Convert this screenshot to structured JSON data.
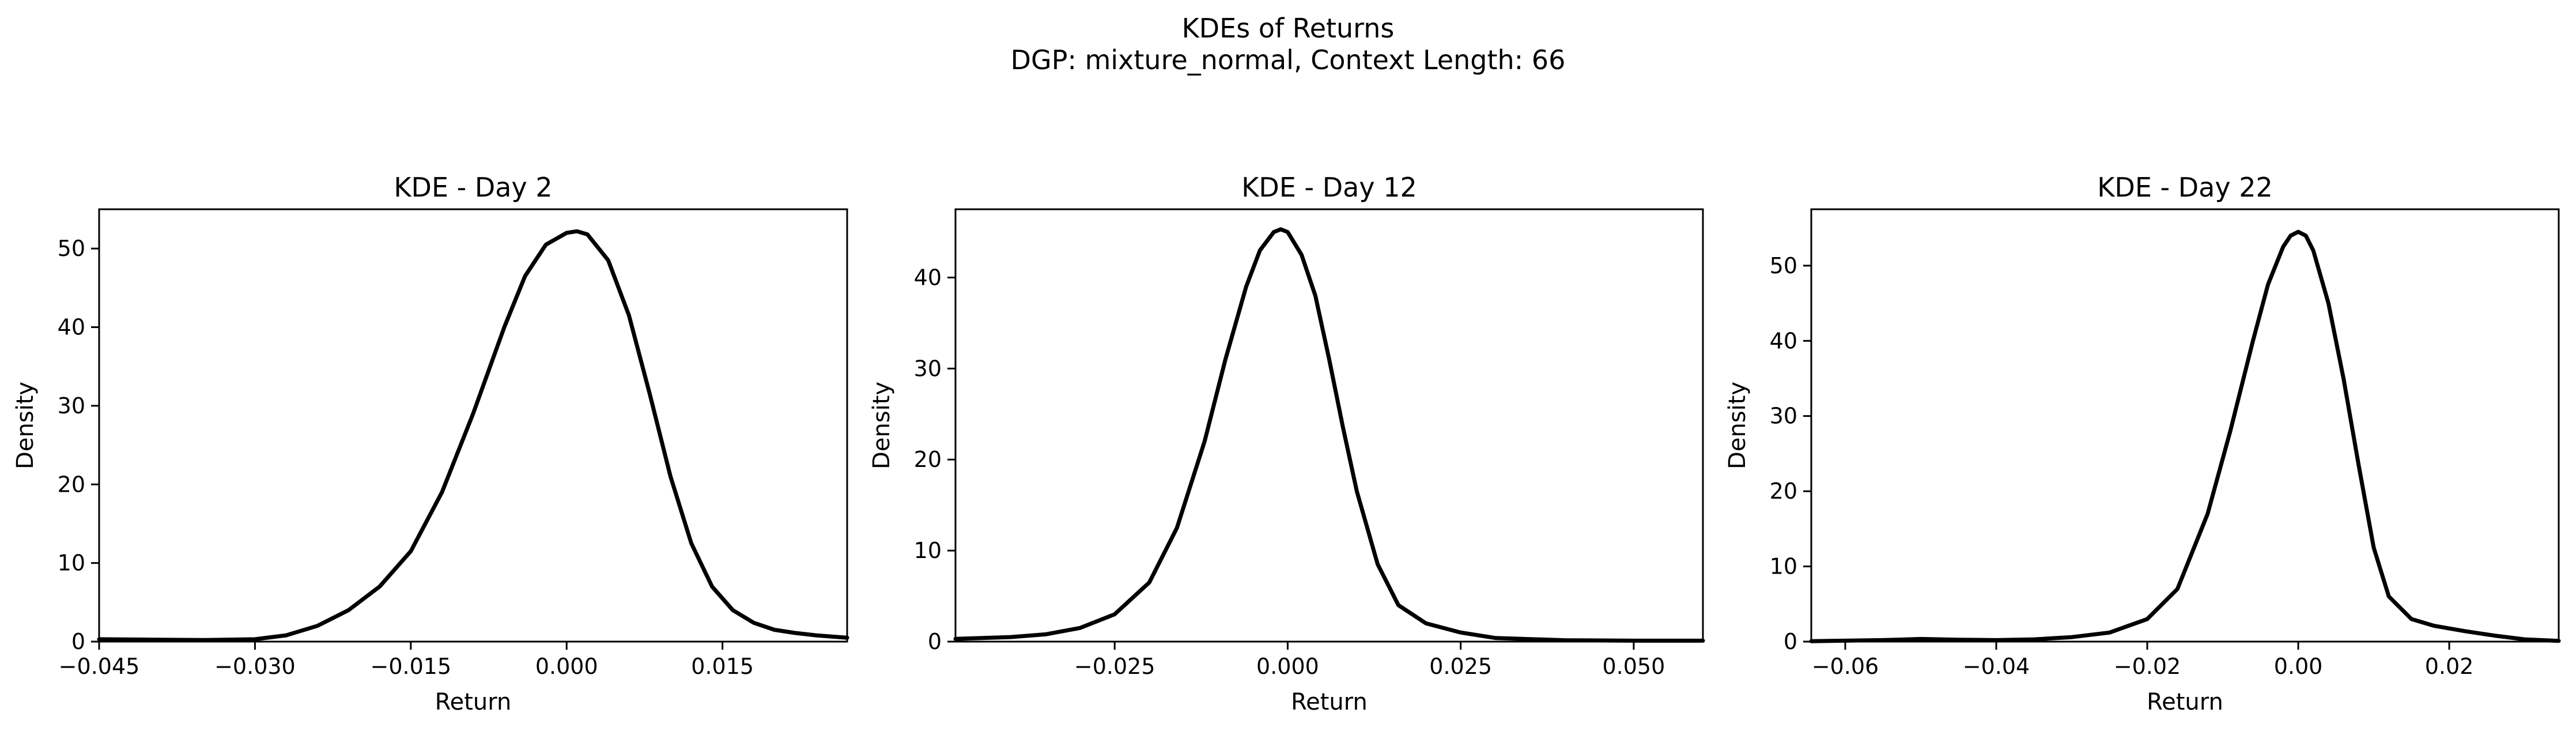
{
  "figure": {
    "title_line1": "KDEs of Returns",
    "title_line2": "DGP: mixture_normal, Context Length: 66"
  },
  "chart_data": [
    {
      "type": "line",
      "title": "KDE - Day 2",
      "xlabel": "Return",
      "ylabel": "Density",
      "xlim": [
        -0.045,
        0.027
      ],
      "ylim": [
        0,
        55
      ],
      "xticks": [
        -0.045,
        -0.03,
        -0.015,
        0.0,
        0.015
      ],
      "xtick_labels": [
        "−0.045",
        "−0.030",
        "−0.015",
        "0.000",
        "0.015"
      ],
      "yticks": [
        0,
        10,
        20,
        30,
        40,
        50
      ],
      "ytick_labels": [
        "0",
        "10",
        "20",
        "30",
        "40",
        "50"
      ],
      "grid": false,
      "series": [
        {
          "color": "#000000",
          "x": [
            -0.045,
            -0.04,
            -0.035,
            -0.03,
            -0.027,
            -0.024,
            -0.021,
            -0.018,
            -0.015,
            -0.012,
            -0.009,
            -0.006,
            -0.004,
            -0.002,
            0.0,
            0.001,
            0.002,
            0.004,
            0.006,
            0.008,
            0.01,
            0.012,
            0.014,
            0.016,
            0.018,
            0.02,
            0.022,
            0.024,
            0.027
          ],
          "y": [
            0.3,
            0.25,
            0.2,
            0.3,
            0.8,
            2.0,
            4.0,
            7.0,
            11.5,
            19.0,
            29.0,
            40.0,
            46.5,
            50.5,
            52.0,
            52.2,
            51.8,
            48.5,
            41.5,
            31.5,
            21.0,
            12.5,
            7.0,
            4.0,
            2.4,
            1.5,
            1.1,
            0.8,
            0.5
          ]
        }
      ]
    },
    {
      "type": "line",
      "title": "KDE - Day 12",
      "xlabel": "Return",
      "ylabel": "Density",
      "xlim": [
        -0.048,
        0.06
      ],
      "ylim": [
        0,
        47.5
      ],
      "xticks": [
        -0.025,
        0.0,
        0.025,
        0.05
      ],
      "xtick_labels": [
        "−0.025",
        "0.000",
        "0.025",
        "0.050"
      ],
      "yticks": [
        0,
        10,
        20,
        30,
        40
      ],
      "ytick_labels": [
        "0",
        "10",
        "20",
        "30",
        "40"
      ],
      "grid": false,
      "series": [
        {
          "color": "#000000",
          "x": [
            -0.048,
            -0.04,
            -0.035,
            -0.03,
            -0.025,
            -0.02,
            -0.016,
            -0.012,
            -0.009,
            -0.006,
            -0.004,
            -0.002,
            -0.001,
            0.0,
            0.002,
            0.004,
            0.006,
            0.008,
            0.01,
            0.013,
            0.016,
            0.02,
            0.025,
            0.03,
            0.04,
            0.05,
            0.06
          ],
          "y": [
            0.3,
            0.5,
            0.8,
            1.5,
            3.0,
            6.5,
            12.5,
            22.0,
            31.0,
            39.0,
            43.0,
            45.0,
            45.3,
            45.0,
            42.5,
            38.0,
            31.0,
            23.5,
            16.5,
            8.5,
            4.0,
            2.0,
            1.0,
            0.4,
            0.15,
            0.1,
            0.1
          ]
        }
      ]
    },
    {
      "type": "line",
      "title": "KDE - Day 22",
      "xlabel": "Return",
      "ylabel": "Density",
      "xlim": [
        -0.0645,
        0.0345
      ],
      "ylim": [
        0,
        57.5
      ],
      "xticks": [
        -0.06,
        -0.04,
        -0.02,
        0.0,
        0.02
      ],
      "xtick_labels": [
        "−0.06",
        "−0.04",
        "−0.02",
        "0.00",
        "0.02"
      ],
      "yticks": [
        0,
        10,
        20,
        30,
        40,
        50
      ],
      "ytick_labels": [
        "0",
        "10",
        "20",
        "30",
        "40",
        "50"
      ],
      "grid": false,
      "series": [
        {
          "color": "#000000",
          "x": [
            -0.0645,
            -0.055,
            -0.05,
            -0.045,
            -0.04,
            -0.035,
            -0.03,
            -0.025,
            -0.02,
            -0.016,
            -0.012,
            -0.009,
            -0.006,
            -0.004,
            -0.002,
            -0.001,
            0.0,
            0.001,
            0.002,
            0.004,
            0.006,
            0.008,
            0.01,
            0.012,
            0.015,
            0.018,
            0.022,
            0.026,
            0.03,
            0.0345
          ],
          "y": [
            0.05,
            0.2,
            0.35,
            0.25,
            0.2,
            0.3,
            0.6,
            1.2,
            3.0,
            7.0,
            17.0,
            28.0,
            40.0,
            47.5,
            52.5,
            54.0,
            54.5,
            54.0,
            52.0,
            45.0,
            35.0,
            23.5,
            12.5,
            6.0,
            3.0,
            2.1,
            1.4,
            0.8,
            0.3,
            0.1
          ]
        }
      ]
    }
  ]
}
